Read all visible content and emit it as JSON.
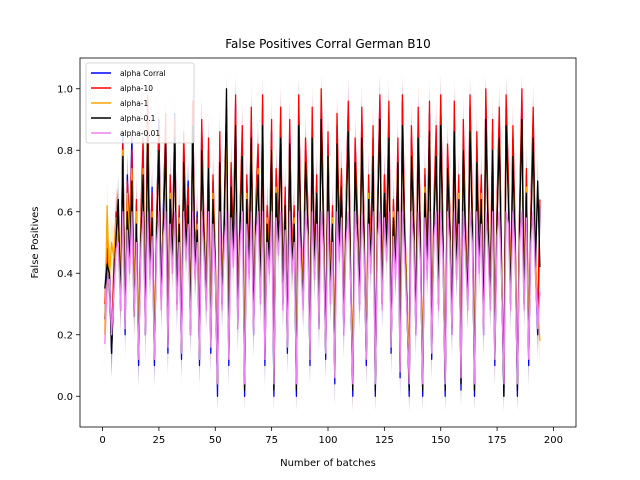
{
  "chart_data": {
    "type": "line",
    "title": "False Positives Corral German B10",
    "xlabel": "Number of batches",
    "ylabel": "False Positives",
    "xlim": [
      -10,
      210
    ],
    "ylim": [
      -0.1,
      1.1
    ],
    "xticks": [
      0,
      25,
      50,
      75,
      100,
      125,
      150,
      175,
      200
    ],
    "yticks": [
      0.0,
      0.2,
      0.4,
      0.6,
      0.8,
      1.0
    ],
    "ytick_labels": [
      "0.0",
      "0.2",
      "0.4",
      "0.6",
      "0.8",
      "1.0"
    ],
    "grid": false,
    "legend_position": "top-left",
    "n_points": 200,
    "series": [
      {
        "name": "alpha Corral",
        "color": "#0000ff",
        "values": [
          0.25,
          0.44,
          0.42,
          0.14,
          0.38,
          0.55,
          0.6,
          0.3,
          0.86,
          0.2,
          0.72,
          0.5,
          0.85,
          0.3,
          0.62,
          0.1,
          0.55,
          0.8,
          0.2,
          0.96,
          0.4,
          0.68,
          0.1,
          0.58,
          0.9,
          0.3,
          0.62,
          0.88,
          0.14,
          0.7,
          0.45,
          0.92,
          0.3,
          0.6,
          0.12,
          0.82,
          0.5,
          0.7,
          0.2,
          0.95,
          0.4,
          0.6,
          0.1,
          0.88,
          0.52,
          0.3,
          0.8,
          0.14,
          0.7,
          0.42,
          0.0,
          0.82,
          0.3,
          0.6,
          0.9,
          0.1,
          0.74,
          0.48,
          0.95,
          0.22,
          0.6,
          0.84,
          0.0,
          0.7,
          0.4,
          0.9,
          0.2,
          0.62,
          0.78,
          0.32,
          0.95,
          0.1,
          0.6,
          0.44,
          0.86,
          0.0,
          0.72,
          0.52,
          0.9,
          0.3,
          0.66,
          0.14,
          0.88,
          0.42,
          0.6,
          0.0,
          0.95,
          0.5,
          0.3,
          0.8,
          0.62,
          0.1,
          0.9,
          0.4,
          0.7,
          0.22,
          0.96,
          0.58,
          0.12,
          0.82,
          0.32,
          0.6,
          0.04,
          0.88,
          0.5,
          0.72,
          0.2,
          0.6,
          0.94,
          0.4,
          0.0,
          0.8,
          0.6,
          0.3,
          0.9,
          0.52,
          0.1,
          0.7,
          0.44,
          0.84,
          0.0,
          0.62,
          0.96,
          0.3,
          0.7,
          0.5,
          0.92,
          0.14,
          0.62,
          0.4,
          0.8,
          0.06,
          0.96,
          0.52,
          0.3,
          0.0,
          0.84,
          0.6,
          0.2,
          0.9,
          0.5,
          0.0,
          0.72,
          0.4,
          0.92,
          0.12,
          0.62,
          0.84,
          0.3,
          0.96,
          0.5,
          0.0,
          0.78,
          0.6,
          0.2,
          0.92,
          0.4,
          0.7,
          0.02,
          0.86,
          0.52,
          0.3,
          0.94,
          0.6,
          0.0,
          0.82,
          0.44,
          0.7,
          0.2,
          0.96,
          0.56,
          0.3,
          0.86,
          0.1,
          0.62,
          0.9,
          0.4,
          0.0,
          0.94,
          0.7,
          0.3,
          0.84,
          0.52,
          0.0,
          0.6,
          0.96,
          0.3,
          0.72,
          0.1,
          0.6,
          0.9,
          0.42,
          0.2,
          0.62
        ]
      },
      {
        "name": "alpha-10",
        "color": "#ff0000",
        "values": [
          0.3,
          0.48,
          0.4,
          0.18,
          0.42,
          0.6,
          0.55,
          0.32,
          0.82,
          0.26,
          0.7,
          0.54,
          0.8,
          0.28,
          0.64,
          0.14,
          0.6,
          0.84,
          0.24,
          0.98,
          0.44,
          0.66,
          0.14,
          0.6,
          0.86,
          0.34,
          0.58,
          0.92,
          0.18,
          0.72,
          0.48,
          0.9,
          0.34,
          0.62,
          0.16,
          0.86,
          0.54,
          0.68,
          0.24,
          0.96,
          0.44,
          0.58,
          0.14,
          0.9,
          0.56,
          0.34,
          0.84,
          0.18,
          0.72,
          0.46,
          0.04,
          0.86,
          0.34,
          0.62,
          0.94,
          0.14,
          0.76,
          0.5,
          0.98,
          0.26,
          0.62,
          0.88,
          0.04,
          0.72,
          0.44,
          0.94,
          0.24,
          0.64,
          0.82,
          0.36,
          0.98,
          0.14,
          0.62,
          0.48,
          0.9,
          0.04,
          0.74,
          0.56,
          0.94,
          0.34,
          0.68,
          0.18,
          0.9,
          0.46,
          0.62,
          0.04,
          0.98,
          0.54,
          0.34,
          0.84,
          0.64,
          0.14,
          0.94,
          0.44,
          0.72,
          0.26,
          1.0,
          0.6,
          0.16,
          0.86,
          0.36,
          0.62,
          0.08,
          0.92,
          0.54,
          0.74,
          0.24,
          0.62,
          0.96,
          0.44,
          0.04,
          0.84,
          0.62,
          0.34,
          0.94,
          0.56,
          0.14,
          0.72,
          0.48,
          0.88,
          0.04,
          0.64,
          0.98,
          0.34,
          0.72,
          0.54,
          0.96,
          0.18,
          0.64,
          0.44,
          0.84,
          0.1,
          0.98,
          0.56,
          0.34,
          0.04,
          0.88,
          0.62,
          0.24,
          0.94,
          0.54,
          0.04,
          0.74,
          0.44,
          0.96,
          0.16,
          0.64,
          0.88,
          0.34,
          0.98,
          0.54,
          0.04,
          0.82,
          0.62,
          0.24,
          0.96,
          0.44,
          0.72,
          0.06,
          0.9,
          0.56,
          0.34,
          0.98,
          0.62,
          0.04,
          0.86,
          0.48,
          0.72,
          0.24,
          1.0,
          0.6,
          0.34,
          0.9,
          0.14,
          0.64,
          0.94,
          0.44,
          0.04,
          0.98,
          0.72,
          0.34,
          0.88,
          0.56,
          0.04,
          0.62,
          1.0,
          0.34,
          0.74,
          0.14,
          0.62,
          0.94,
          0.46,
          0.24,
          0.64
        ]
      },
      {
        "name": "alpha-1",
        "color": "#ffa500",
        "values": [
          0.2,
          0.62,
          0.38,
          0.5,
          0.45,
          0.58,
          0.52,
          0.4,
          0.8,
          0.3,
          0.66,
          0.5,
          0.74,
          0.34,
          0.6,
          0.2,
          0.56,
          0.74,
          0.3,
          0.88,
          0.42,
          0.6,
          0.2,
          0.56,
          0.8,
          0.36,
          0.58,
          0.82,
          0.22,
          0.66,
          0.46,
          0.82,
          0.36,
          0.58,
          0.2,
          0.76,
          0.5,
          0.62,
          0.28,
          0.86,
          0.42,
          0.56,
          0.2,
          0.8,
          0.52,
          0.36,
          0.74,
          0.22,
          0.66,
          0.44,
          0.1,
          0.76,
          0.36,
          0.58,
          0.84,
          0.2,
          0.68,
          0.48,
          0.86,
          0.3,
          0.58,
          0.78,
          0.1,
          0.66,
          0.42,
          0.84,
          0.28,
          0.6,
          0.74,
          0.38,
          0.86,
          0.2,
          0.58,
          0.46,
          0.8,
          0.1,
          0.68,
          0.52,
          0.84,
          0.36,
          0.62,
          0.22,
          0.8,
          0.44,
          0.58,
          0.1,
          0.86,
          0.5,
          0.36,
          0.76,
          0.6,
          0.2,
          0.84,
          0.42,
          0.66,
          0.3,
          0.88,
          0.56,
          0.2,
          0.78,
          0.38,
          0.58,
          0.14,
          0.82,
          0.5,
          0.68,
          0.28,
          0.58,
          0.86,
          0.42,
          0.1,
          0.76,
          0.58,
          0.36,
          0.84,
          0.52,
          0.2,
          0.66,
          0.46,
          0.78,
          0.1,
          0.6,
          0.88,
          0.36,
          0.66,
          0.5,
          0.84,
          0.22,
          0.6,
          0.42,
          0.76,
          0.14,
          0.86,
          0.52,
          0.36,
          0.1,
          0.78,
          0.58,
          0.28,
          0.84,
          0.5,
          0.1,
          0.68,
          0.42,
          0.84,
          0.2,
          0.6,
          0.78,
          0.36,
          0.86,
          0.5,
          0.1,
          0.74,
          0.58,
          0.28,
          0.84,
          0.42,
          0.66,
          0.12,
          0.8,
          0.52,
          0.36,
          0.86,
          0.58,
          0.1,
          0.76,
          0.46,
          0.66,
          0.28,
          0.88,
          0.56,
          0.36,
          0.8,
          0.2,
          0.6,
          0.84,
          0.42,
          0.1,
          0.86,
          0.66,
          0.36,
          0.78,
          0.52,
          0.1,
          0.58,
          0.88,
          0.36,
          0.68,
          0.2,
          0.58,
          0.84,
          0.44,
          0.28,
          0.18
        ]
      },
      {
        "name": "alpha-0.1",
        "color": "#000000",
        "values": [
          0.35,
          0.43,
          0.4,
          0.14,
          0.36,
          0.52,
          0.64,
          0.28,
          0.78,
          0.24,
          0.6,
          0.44,
          0.7,
          0.26,
          0.56,
          0.12,
          0.52,
          0.72,
          0.2,
          0.86,
          0.4,
          0.58,
          0.12,
          0.54,
          0.8,
          0.3,
          0.56,
          0.82,
          0.16,
          0.64,
          0.42,
          0.84,
          0.3,
          0.56,
          0.14,
          0.76,
          0.48,
          0.62,
          0.22,
          0.88,
          0.4,
          0.54,
          0.12,
          0.8,
          0.5,
          0.3,
          0.74,
          0.16,
          0.64,
          0.42,
          0.04,
          0.76,
          0.3,
          0.56,
          1.0,
          0.12,
          0.68,
          0.46,
          0.88,
          0.24,
          0.56,
          0.78,
          0.02,
          0.64,
          0.4,
          0.84,
          0.22,
          0.58,
          0.72,
          0.32,
          0.88,
          0.12,
          0.56,
          0.44,
          0.8,
          0.02,
          0.66,
          0.5,
          0.84,
          0.3,
          0.62,
          0.16,
          0.82,
          0.42,
          0.56,
          0.02,
          0.88,
          0.48,
          0.3,
          0.76,
          0.58,
          0.12,
          0.84,
          0.4,
          0.66,
          0.24,
          0.9,
          0.54,
          0.14,
          0.78,
          0.32,
          0.56,
          0.06,
          0.82,
          0.48,
          0.68,
          0.22,
          0.56,
          0.86,
          0.4,
          0.02,
          0.76,
          0.56,
          0.3,
          0.84,
          0.5,
          0.12,
          0.64,
          0.42,
          0.78,
          0.02,
          0.58,
          0.9,
          0.3,
          0.66,
          0.48,
          0.84,
          0.16,
          0.58,
          0.4,
          0.76,
          0.08,
          0.88,
          0.5,
          0.3,
          0.02,
          0.78,
          0.56,
          0.22,
          0.84,
          0.48,
          0.02,
          0.66,
          0.4,
          0.86,
          0.14,
          0.58,
          0.78,
          0.3,
          0.88,
          0.48,
          0.02,
          0.74,
          0.56,
          0.22,
          0.86,
          0.4,
          0.64,
          0.04,
          0.8,
          0.5,
          0.3,
          0.86,
          0.56,
          0.02,
          0.76,
          0.42,
          0.64,
          0.22,
          0.9,
          0.54,
          0.3,
          0.8,
          0.12,
          0.58,
          0.84,
          0.4,
          0.0,
          0.88,
          0.64,
          0.3,
          0.78,
          0.5,
          0.02,
          0.56,
          0.9,
          0.3,
          0.66,
          0.12,
          0.56,
          0.84,
          0.42,
          0.7,
          0.42
        ]
      },
      {
        "name": "alpha-0.01",
        "color": "#ee82ee",
        "values": [
          0.17,
          0.36,
          0.38,
          0.2,
          0.34,
          0.48,
          0.5,
          0.28,
          0.6,
          0.22,
          0.54,
          0.4,
          0.6,
          0.26,
          0.5,
          0.12,
          0.48,
          0.6,
          0.2,
          0.6,
          0.38,
          0.52,
          0.12,
          0.5,
          0.6,
          0.28,
          0.52,
          0.6,
          0.16,
          0.56,
          0.4,
          0.6,
          0.28,
          0.5,
          0.14,
          0.6,
          0.44,
          0.56,
          0.2,
          0.6,
          0.38,
          0.5,
          0.12,
          0.6,
          0.46,
          0.28,
          0.6,
          0.16,
          0.56,
          0.4,
          0.04,
          0.6,
          0.28,
          0.5,
          0.6,
          0.12,
          0.58,
          0.42,
          0.6,
          0.22,
          0.5,
          0.6,
          0.04,
          0.56,
          0.38,
          0.6,
          0.2,
          0.52,
          0.6,
          0.3,
          0.6,
          0.12,
          0.5,
          0.4,
          0.6,
          0.04,
          0.58,
          0.46,
          0.6,
          0.28,
          0.54,
          0.16,
          0.6,
          0.4,
          0.5,
          0.04,
          0.6,
          0.44,
          0.28,
          0.6,
          0.52,
          0.12,
          0.6,
          0.38,
          0.56,
          0.22,
          0.6,
          0.48,
          0.14,
          0.6,
          0.3,
          0.5,
          0.06,
          0.6,
          0.44,
          0.58,
          0.2,
          0.5,
          0.6,
          0.38,
          0.04,
          0.6,
          0.5,
          0.28,
          0.6,
          0.46,
          0.12,
          0.56,
          0.4,
          0.6,
          0.04,
          0.52,
          0.6,
          0.28,
          0.58,
          0.44,
          0.6,
          0.16,
          0.52,
          0.38,
          0.6,
          0.08,
          0.6,
          0.46,
          0.28,
          0.04,
          0.6,
          0.5,
          0.2,
          0.6,
          0.44,
          0.04,
          0.58,
          0.38,
          0.6,
          0.14,
          0.52,
          0.6,
          0.28,
          0.6,
          0.44,
          0.04,
          0.6,
          0.5,
          0.2,
          0.6,
          0.38,
          0.56,
          0.06,
          0.6,
          0.46,
          0.28,
          0.6,
          0.5,
          0.04,
          0.6,
          0.4,
          0.56,
          0.2,
          0.6,
          0.48,
          0.28,
          0.6,
          0.12,
          0.52,
          0.6,
          0.38,
          0.04,
          0.6,
          0.56,
          0.28,
          0.6,
          0.46,
          0.04,
          0.5,
          0.6,
          0.28,
          0.58,
          0.12,
          0.5,
          0.6,
          0.4,
          0.22,
          0.34
        ]
      }
    ]
  }
}
